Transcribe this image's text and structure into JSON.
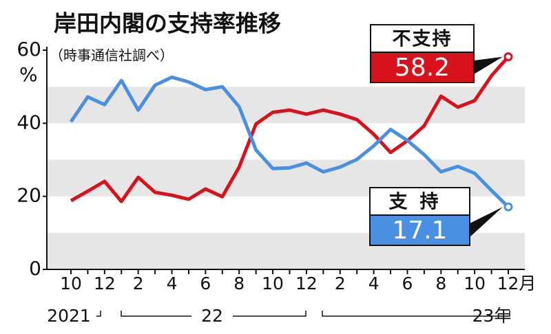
{
  "chart_data": {
    "type": "line",
    "title": "岸田内閣の支持率推移",
    "subtitle": "（時事通信社調べ）",
    "y_label": "%",
    "categories": [
      "10",
      null,
      "12",
      null,
      "2",
      null,
      "4",
      null,
      "6",
      null,
      "8",
      null,
      "10",
      null,
      "12",
      null,
      "2",
      null,
      "4",
      null,
      "6",
      null,
      "8",
      null,
      "10",
      null,
      "12月"
    ],
    "year_labels": [
      "2021",
      "22",
      "23年"
    ],
    "series": [
      {
        "name": "不支持",
        "color": "#d6121d",
        "values": [
          18.8,
          21.4,
          24.1,
          18.6,
          25.2,
          21.1,
          20.3,
          19.2,
          22.0,
          19.9,
          28.0,
          39.8,
          43.0,
          43.6,
          42.5,
          43.6,
          42.5,
          41.0,
          37.0,
          32.0,
          35.2,
          39.3,
          47.4,
          44.4,
          46.2,
          53.0,
          58.2
        ]
      },
      {
        "name": "支持",
        "color": "#4a90e2",
        "values": [
          40.4,
          47.2,
          45.1,
          51.7,
          43.6,
          50.4,
          52.6,
          51.3,
          49.2,
          50.0,
          44.5,
          32.7,
          27.6,
          27.8,
          29.1,
          26.7,
          28.0,
          30.1,
          33.8,
          38.3,
          35.3,
          31.4,
          26.7,
          28.2,
          26.3,
          21.6,
          17.1
        ]
      }
    ],
    "ylim": [
      0,
      60
    ],
    "yticks": [
      0,
      20,
      40,
      60
    ],
    "grid": "bands"
  }
}
